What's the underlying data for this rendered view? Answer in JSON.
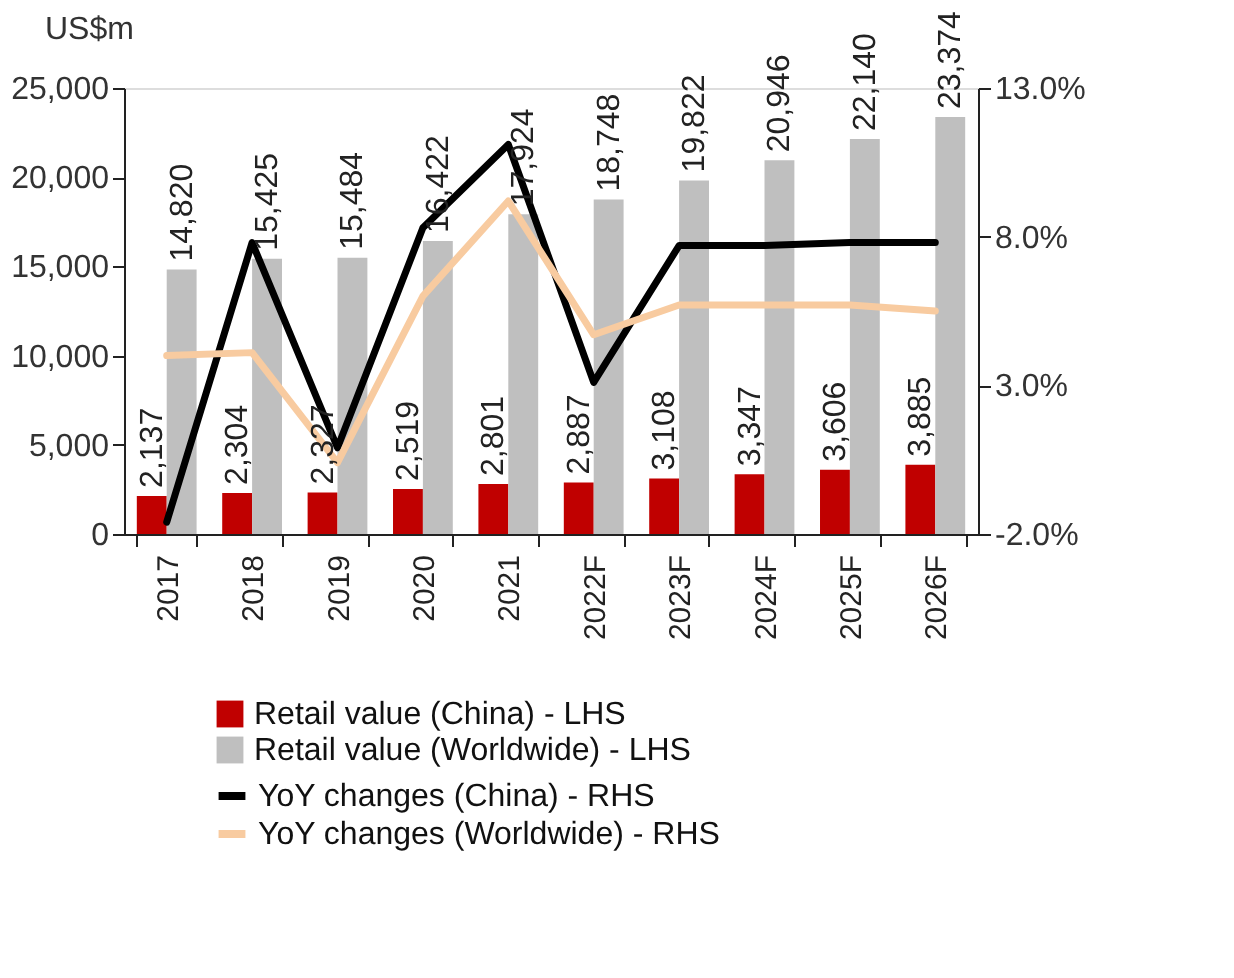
{
  "chart_data": {
    "type": "bar",
    "ylabel": "US$m",
    "categories": [
      "2017",
      "2018",
      "2019",
      "2020",
      "2021",
      "2022F",
      "2023F",
      "2024F",
      "2025F",
      "2026F"
    ],
    "series": [
      {
        "name": "Retail value (China) - LHS",
        "color": "#c00000",
        "values": [
          2137,
          2304,
          2327,
          2519,
          2801,
          2887,
          3108,
          3347,
          3606,
          3885
        ],
        "value_labels": [
          "2,137",
          "2,304",
          "2,327",
          "2,519",
          "2,801",
          "2,887",
          "3,108",
          "3,347",
          "3,606",
          "3,885"
        ]
      },
      {
        "name": "Retail value (Worldwide) - LHS",
        "color": "#bfbfbf",
        "values": [
          14820,
          15425,
          15484,
          16422,
          17924,
          18748,
          19822,
          20946,
          22140,
          23374
        ],
        "value_labels": [
          "14,820",
          "15,425",
          "15,484",
          "16,422",
          "17,924",
          "18,748",
          "19,822",
          "20,946",
          "22,140",
          "23,374"
        ]
      },
      {
        "name": "YoY changes (China) - RHS",
        "type": "line",
        "axis": "y2",
        "color": "#000000",
        "values": [
          -1.6,
          7.8,
          0.9,
          8.3,
          11.1,
          3.1,
          7.7,
          7.7,
          7.8,
          7.8
        ]
      },
      {
        "name": "YoY changes (Worldwide) - RHS",
        "type": "line",
        "axis": "y2",
        "color": "#f8cba0",
        "values": [
          4.0,
          4.1,
          0.4,
          6.0,
          9.2,
          4.7,
          5.7,
          5.7,
          5.7,
          5.5
        ]
      }
    ],
    "ylim": [
      0,
      25000
    ],
    "yticks": [
      {
        "value": 0,
        "label": "0"
      },
      {
        "value": 5000,
        "label": "5,000"
      },
      {
        "value": 10000,
        "label": "10,000"
      },
      {
        "value": 15000,
        "label": "15,000"
      },
      {
        "value": 20000,
        "label": "20,000"
      },
      {
        "value": 25000,
        "label": "25,000"
      }
    ],
    "y2lim": [
      -2,
      13
    ],
    "y2ticks": [
      {
        "value": -2,
        "label": "-2.0%"
      },
      {
        "value": 3,
        "label": "3.0%"
      },
      {
        "value": 8,
        "label": "8.0%"
      },
      {
        "value": 13,
        "label": "13.0%"
      }
    ],
    "legend": "bottom",
    "grid": false
  }
}
